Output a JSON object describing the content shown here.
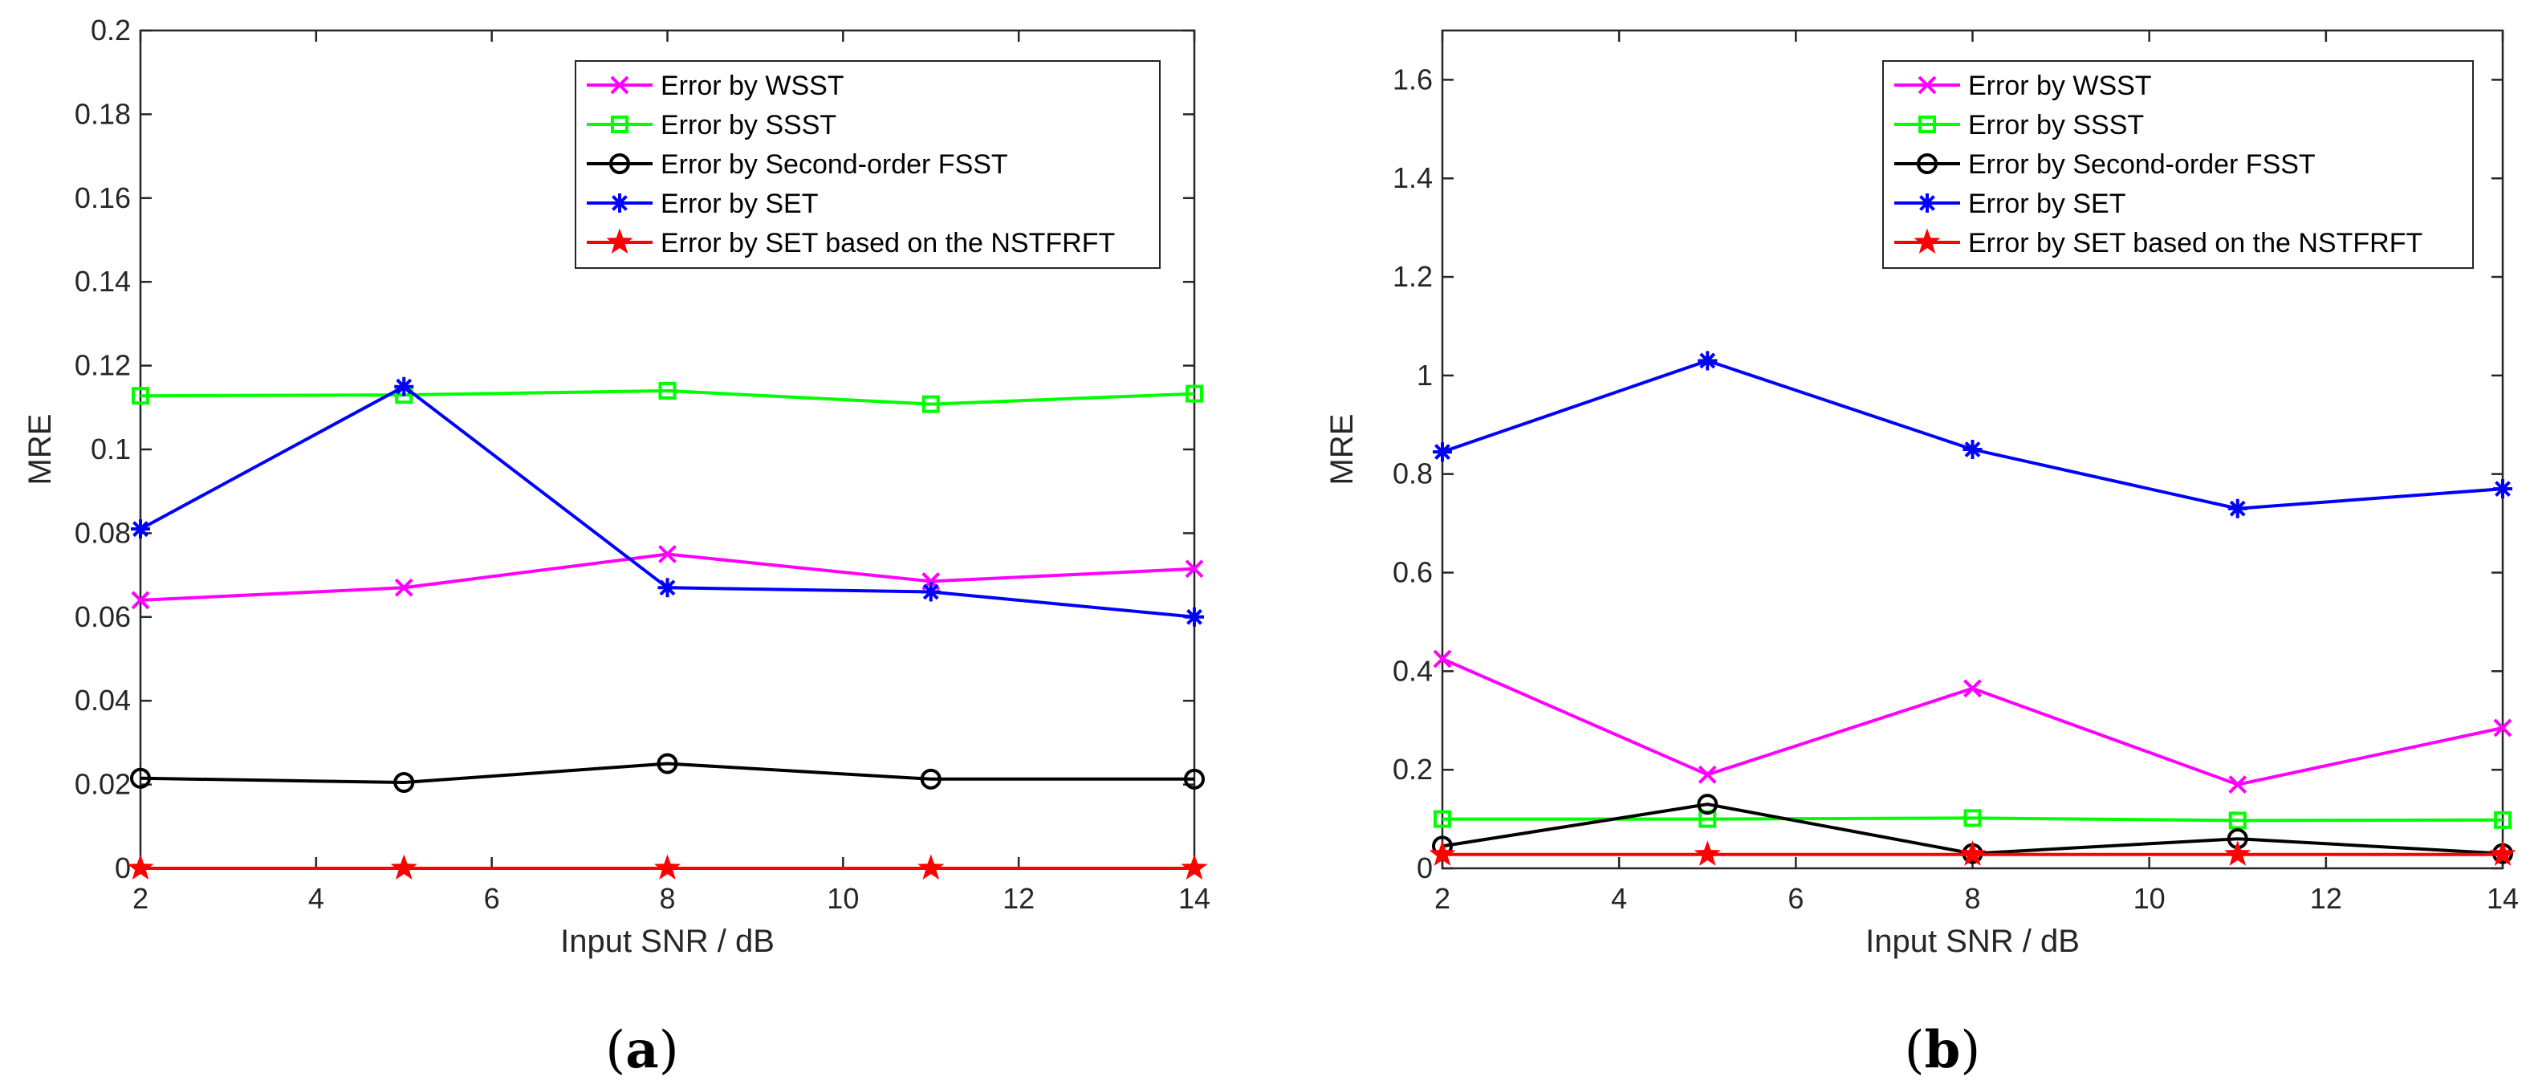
{
  "chart_data": [
    {
      "type": "line",
      "panel_label": "(a)",
      "panel_letter": "a",
      "xlabel": "Input SNR / dB",
      "ylabel": "MRE",
      "xlim": [
        2,
        14
      ],
      "ylim": [
        0,
        0.2
      ],
      "xticks": [
        2,
        4,
        6,
        8,
        10,
        12,
        14
      ],
      "yticks": [
        0,
        0.02,
        0.04,
        0.06,
        0.08,
        0.1,
        0.12,
        0.14,
        0.16,
        0.18,
        0.2
      ],
      "ytick_labels": [
        "0",
        "0.02",
        "0.04",
        "0.06",
        "0.08",
        "0.1",
        "0.12",
        "0.14",
        "0.16",
        "0.18",
        "0.2"
      ],
      "legend_position": "top-right",
      "x": [
        2,
        5,
        8,
        11,
        14
      ],
      "series": [
        {
          "name": "Error by WSST",
          "color": "#ff00ff",
          "marker": "x",
          "values": [
            0.064,
            0.067,
            0.075,
            0.0685,
            0.0715
          ]
        },
        {
          "name": "Error by SSST",
          "color": "#00ff00",
          "marker": "square",
          "values": [
            0.1128,
            0.113,
            0.114,
            0.1108,
            0.1133
          ]
        },
        {
          "name": "Error by Second-order FSST",
          "color": "#000000",
          "marker": "circle",
          "values": [
            0.0215,
            0.0205,
            0.025,
            0.0213,
            0.0213
          ]
        },
        {
          "name": "Error by SET",
          "color": "#0000ff",
          "marker": "asterisk",
          "values": [
            0.081,
            0.115,
            0.067,
            0.066,
            0.06
          ]
        },
        {
          "name": "Error by SET based on the NSTFRFT",
          "color": "#ff0000",
          "marker": "star",
          "values": [
            0,
            0,
            0,
            0,
            0
          ]
        }
      ]
    },
    {
      "type": "line",
      "panel_label": "(b)",
      "panel_letter": "b",
      "xlabel": "Input SNR / dB",
      "ylabel": "MRE",
      "xlim": [
        2,
        14
      ],
      "ylim": [
        0,
        1.7
      ],
      "xticks": [
        2,
        4,
        6,
        8,
        10,
        12,
        14
      ],
      "yticks": [
        0,
        0.2,
        0.4,
        0.6,
        0.8,
        1,
        1.2,
        1.4,
        1.6
      ],
      "ytick_labels": [
        "0",
        "0.2",
        "0.4",
        "0.6",
        "0.8",
        "1",
        "1.2",
        "1.4",
        "1.6"
      ],
      "legend_position": "top-right",
      "x": [
        2,
        5,
        8,
        11,
        14
      ],
      "series": [
        {
          "name": "Error by WSST",
          "color": "#ff00ff",
          "marker": "x",
          "values": [
            0.425,
            0.19,
            0.365,
            0.17,
            0.285
          ]
        },
        {
          "name": "Error by SSST",
          "color": "#00ff00",
          "marker": "square",
          "values": [
            0.1,
            0.1,
            0.102,
            0.097,
            0.098
          ]
        },
        {
          "name": "Error by Second-order FSST",
          "color": "#000000",
          "marker": "circle",
          "values": [
            0.045,
            0.13,
            0.03,
            0.06,
            0.03
          ]
        },
        {
          "name": "Error by SET",
          "color": "#0000ff",
          "marker": "asterisk",
          "values": [
            0.845,
            1.03,
            0.85,
            0.73,
            0.77
          ]
        },
        {
          "name": "Error by SET based on the NSTFRFT",
          "color": "#ff0000",
          "marker": "star",
          "values": [
            0.028,
            0.028,
            0.028,
            0.028,
            0.028
          ]
        }
      ]
    }
  ]
}
